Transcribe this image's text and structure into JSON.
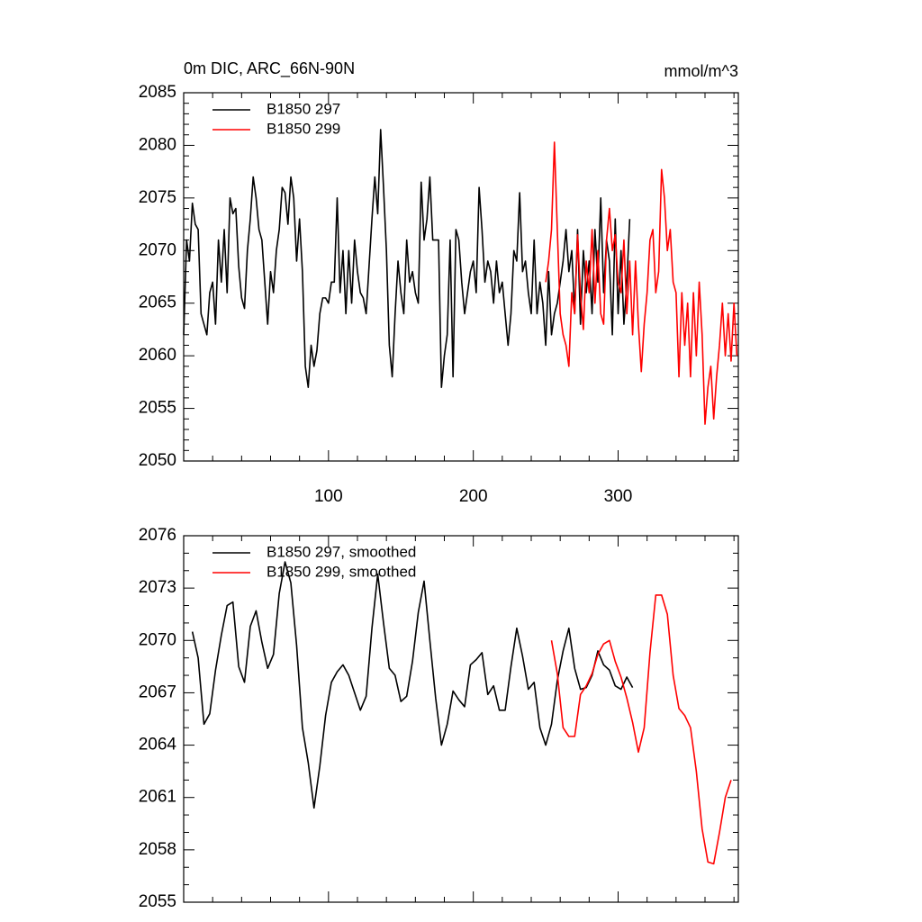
{
  "chart_data": [
    {
      "type": "line",
      "title": "0m DIC, ARC_66N-90N",
      "units": "mmol/m^3",
      "xlim": [
        0,
        383
      ],
      "xticks": [
        100,
        200,
        300
      ],
      "xtick_labels": true,
      "ylim": [
        2050,
        2085
      ],
      "yticks": [
        2050,
        2055,
        2060,
        2065,
        2070,
        2075,
        2080,
        2085
      ],
      "legend": "top-left",
      "x": [
        0,
        2,
        4,
        6,
        8,
        10,
        12,
        14,
        16,
        18,
        20,
        22,
        24,
        26,
        28,
        30,
        32,
        34,
        36,
        38,
        40,
        42,
        44,
        46,
        48,
        50,
        52,
        54,
        56,
        58,
        60,
        62,
        64,
        66,
        68,
        70,
        72,
        74,
        76,
        78,
        80,
        82,
        84,
        86,
        88,
        90,
        92,
        94,
        96,
        98,
        100,
        102,
        104,
        106,
        108,
        110,
        112,
        114,
        116,
        118,
        120,
        122,
        124,
        126,
        128,
        130,
        132,
        134,
        136,
        138,
        140,
        142,
        144,
        146,
        148,
        150,
        152,
        154,
        156,
        158,
        160,
        162,
        164,
        166,
        168,
        170,
        172,
        174,
        176,
        178,
        180,
        182,
        184,
        186,
        188,
        190,
        192,
        194,
        196,
        198,
        200,
        202,
        204,
        206,
        208,
        210,
        212,
        214,
        216,
        218,
        220,
        222,
        224,
        226,
        228,
        230,
        232,
        234,
        236,
        238,
        240,
        242,
        244,
        246,
        248,
        250,
        252,
        254,
        256,
        258,
        260,
        262,
        264,
        266,
        268,
        270,
        272,
        274,
        276,
        278,
        280,
        282,
        284,
        286,
        288,
        290,
        292,
        294,
        296,
        298,
        300,
        302,
        304,
        306,
        308,
        310,
        312,
        314,
        316,
        318,
        320,
        322,
        324,
        326,
        328,
        330,
        332,
        334,
        336,
        338,
        340,
        342,
        344,
        346,
        348,
        350,
        352,
        354,
        356,
        358,
        360,
        362,
        364,
        366,
        368,
        370,
        372,
        374,
        376,
        378,
        380,
        382
      ],
      "series": [
        {
          "name": "B1850 297",
          "color": "#000000",
          "values": [
            2062,
            2071,
            2069,
            2074.5,
            2072.5,
            2072,
            2064,
            2063,
            2062,
            2066,
            2067,
            2063,
            2071,
            2067,
            2072,
            2066,
            2075,
            2073.5,
            2074,
            2068.5,
            2065.5,
            2064.5,
            2070,
            2073,
            2077,
            2075,
            2072,
            2071,
            2067,
            2063,
            2068,
            2066,
            2070,
            2072,
            2076,
            2075.5,
            2072.5,
            2077,
            2075,
            2069,
            2073,
            2068,
            2059,
            2057,
            2061,
            2059,
            2060.5,
            2064,
            2065.5,
            2065.5,
            2065,
            2067,
            2067,
            2075,
            2066,
            2070,
            2064,
            2070,
            2065,
            2071,
            2068,
            2066,
            2065.5,
            2064,
            2068.5,
            2073,
            2077,
            2073.5,
            2081.5,
            2076,
            2070,
            2061,
            2058,
            2064,
            2069,
            2066,
            2064,
            2071,
            2067,
            2068,
            2066,
            2065,
            2076.5,
            2071,
            2073,
            2077,
            2071,
            2071,
            2071,
            2057,
            2060,
            2062,
            2071,
            2058,
            2072,
            2071,
            2067,
            2064,
            2066,
            2068,
            2069,
            2066,
            2076,
            2072,
            2067,
            2069,
            2068,
            2065,
            2069,
            2066,
            2067,
            2064,
            2061,
            2064,
            2070,
            2069,
            2075.5,
            2068,
            2069,
            2066,
            2064,
            2071,
            2064,
            2067,
            2065,
            2061,
            2068,
            2062,
            2064,
            2065,
            2067,
            2069,
            2072,
            2068,
            2070,
            2064,
            2072,
            2063,
            2070,
            2066,
            2069,
            2064,
            2072,
            2067,
            2075,
            2066,
            2071,
            2069,
            2062,
            2073,
            2064,
            2070,
            2063,
            2067,
            2073,
            null,
            null,
            null,
            null,
            null,
            null,
            null,
            null,
            null,
            null,
            null,
            null,
            null,
            null,
            null,
            null,
            null,
            null,
            null,
            null,
            null,
            null,
            null,
            null,
            null,
            null,
            null,
            null,
            null,
            null,
            null,
            null,
            null,
            null,
            null,
            null,
            null
          ]
        },
        {
          "name": "B1850 299",
          "color": "#ff0000",
          "values": [
            null,
            null,
            null,
            null,
            null,
            null,
            null,
            null,
            null,
            null,
            null,
            null,
            null,
            null,
            null,
            null,
            null,
            null,
            null,
            null,
            null,
            null,
            null,
            null,
            null,
            null,
            null,
            null,
            null,
            null,
            null,
            null,
            null,
            null,
            null,
            null,
            null,
            null,
            null,
            null,
            null,
            null,
            null,
            null,
            null,
            null,
            null,
            null,
            null,
            null,
            null,
            null,
            null,
            null,
            null,
            null,
            null,
            null,
            null,
            null,
            null,
            null,
            null,
            null,
            null,
            null,
            null,
            null,
            null,
            null,
            null,
            null,
            null,
            null,
            null,
            null,
            null,
            null,
            null,
            null,
            null,
            null,
            null,
            null,
            null,
            null,
            null,
            null,
            null,
            null,
            null,
            null,
            null,
            null,
            null,
            null,
            null,
            null,
            null,
            null,
            null,
            null,
            null,
            null,
            null,
            null,
            null,
            null,
            null,
            null,
            null,
            null,
            null,
            null,
            null,
            null,
            null,
            null,
            null,
            null,
            null,
            null,
            null,
            null,
            null,
            2067,
            2069,
            2072,
            2080.3,
            2072,
            2064,
            2062,
            2061,
            2059,
            2066,
            2064,
            2071.5,
            2066,
            2062.5,
            2069,
            2066,
            2072,
            2065,
            2070,
            2064,
            2063,
            2071,
            2074,
            2070,
            2071.5,
            2067,
            2066,
            2071,
            2064,
            2069,
            2062,
            2069,
            2063,
            2058.5,
            2063,
            2066,
            2071,
            2072,
            2066,
            2068,
            2077.7,
            2075,
            2070,
            2072,
            2067,
            2066,
            2058,
            2066,
            2061,
            2065,
            2058,
            2066,
            2060,
            2067,
            2062,
            2053.5,
            2057,
            2059,
            2054,
            2058,
            2061,
            2065,
            2060,
            2064,
            2059.5,
            2065,
            2060
          ]
        }
      ]
    },
    {
      "type": "line",
      "xlim": [
        0,
        383
      ],
      "xticks": [
        100,
        200,
        300
      ],
      "xtick_labels": false,
      "ylim": [
        2055,
        2076
      ],
      "yticks": [
        2055,
        2058,
        2061,
        2064,
        2067,
        2070,
        2073,
        2076
      ],
      "legend": "top-left",
      "x": [
        2,
        6,
        10,
        14,
        18,
        22,
        26,
        30,
        34,
        38,
        42,
        46,
        50,
        54,
        58,
        62,
        66,
        70,
        74,
        78,
        82,
        86,
        90,
        94,
        98,
        102,
        106,
        110,
        114,
        118,
        122,
        126,
        130,
        134,
        138,
        142,
        146,
        150,
        154,
        158,
        162,
        166,
        170,
        174,
        178,
        182,
        186,
        190,
        194,
        198,
        202,
        206,
        210,
        214,
        218,
        222,
        226,
        230,
        234,
        238,
        242,
        246,
        250,
        254,
        258,
        262,
        266,
        270,
        274,
        278,
        282,
        286,
        290,
        294,
        298,
        302,
        306,
        310,
        314,
        318,
        322,
        326,
        330,
        334,
        338,
        342,
        346,
        350,
        354,
        358,
        362,
        366,
        370,
        374,
        378
      ],
      "series": [
        {
          "name": "B1850 297, smoothed",
          "color": "#000000",
          "values": [
            null,
            2070.5,
            2069,
            2065.2,
            2065.8,
            2068.3,
            2070.3,
            2072,
            2072.2,
            2068.5,
            2067.6,
            2070.8,
            2071.7,
            2069.9,
            2068.4,
            2069.2,
            2072.7,
            2074.5,
            2073.3,
            2069.7,
            2065,
            2063,
            2060.4,
            2062.8,
            2065.7,
            2067.6,
            2068.2,
            2068.6,
            2068,
            2067,
            2066,
            2066.8,
            2070.7,
            2073.8,
            2071,
            2068.4,
            2068,
            2066.5,
            2066.8,
            2068.8,
            2071.6,
            2073.4,
            2070,
            2066.7,
            2064,
            2065.2,
            2067.1,
            2066.6,
            2066.2,
            2068.6,
            2068.9,
            2069.3,
            2066.9,
            2067.4,
            2066,
            2066,
            2068.5,
            2070.7,
            2069.1,
            2067.2,
            2067.6,
            2065,
            2064,
            2065.2,
            2067.7,
            2069.4,
            2070.7,
            2068.4,
            2067.2,
            2067.3,
            2068,
            2069.4,
            2068.6,
            2068.3,
            2067.4,
            2067.2,
            2067.9,
            2067.3,
            null,
            null,
            null,
            null,
            null,
            null,
            null,
            null,
            null,
            null,
            null,
            null,
            null,
            null,
            null,
            null,
            null
          ]
        },
        {
          "name": "B1850 299, smoothed",
          "color": "#ff0000",
          "values": [
            null,
            null,
            null,
            null,
            null,
            null,
            null,
            null,
            null,
            null,
            null,
            null,
            null,
            null,
            null,
            null,
            null,
            null,
            null,
            null,
            null,
            null,
            null,
            null,
            null,
            null,
            null,
            null,
            null,
            null,
            null,
            null,
            null,
            null,
            null,
            null,
            null,
            null,
            null,
            null,
            null,
            null,
            null,
            null,
            null,
            null,
            null,
            null,
            null,
            null,
            null,
            null,
            null,
            null,
            null,
            null,
            null,
            null,
            null,
            null,
            null,
            null,
            null,
            2070,
            2068.1,
            2065,
            2064.5,
            2064.5,
            2066.9,
            2067.4,
            2068.1,
            2069.2,
            2069.8,
            2070,
            2068.8,
            2067.9,
            2066.7,
            2065.3,
            2063.6,
            2065,
            2069.3,
            2072.6,
            2072.6,
            2071.5,
            2068,
            2066.1,
            2065.7,
            2065,
            2062.5,
            2059.2,
            2057.3,
            2057.2,
            2059,
            2061,
            2062
          ]
        }
      ]
    }
  ]
}
